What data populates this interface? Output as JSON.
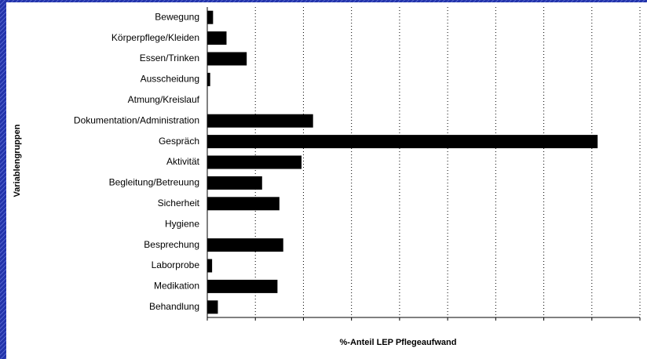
{
  "chart_data": {
    "type": "hbar",
    "xlabel": "%-Anteil LEP Pflegeaufwand",
    "ylabel": "Variablengruppen",
    "categories": [
      "Bewegung",
      "Körperpflege/Kleiden",
      "Essen/Trinken",
      "Ausscheidung",
      "Atmung/Kreislauf",
      "Dokumentation/Administration",
      "Gespräch",
      "Aktivität",
      "Begleitung/Betreuung",
      "Sicherheit",
      "Hygiene",
      "Besprechung",
      "Laborprobe",
      "Medikation",
      "Behandlung"
    ],
    "values": [
      0.6,
      2,
      4.1,
      0.3,
      0,
      11,
      40.6,
      9.8,
      5.7,
      7.5,
      0,
      7.9,
      0.5,
      7.3,
      1.1
    ],
    "color": "#000000",
    "xlim": [
      0,
      45
    ],
    "xticks": [
      0,
      5,
      10,
      15,
      20,
      25,
      30,
      35,
      40,
      45
    ],
    "grid": true
  }
}
